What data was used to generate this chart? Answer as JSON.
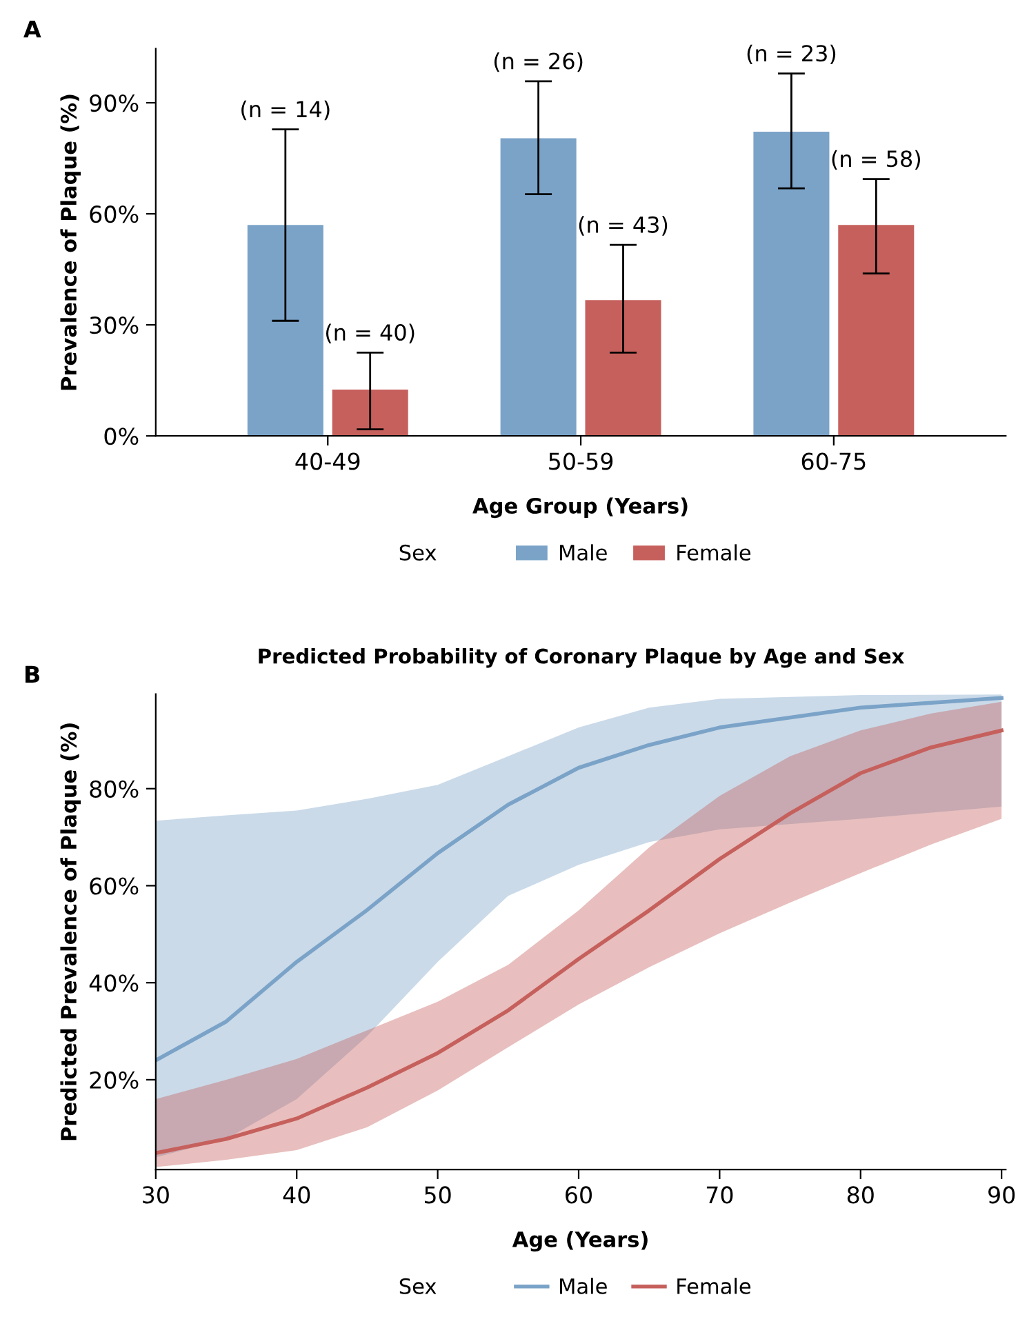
{
  "chart_data": [
    {
      "type": "bar",
      "categories": [
        "40-49",
        "50-59",
        "60-75"
      ],
      "xlabel": "Age Group (Years)",
      "ylabel": "Prevalence of Plaque (%)",
      "legend_title": "Sex",
      "legend": "bottom",
      "ylim": [
        0,
        104.6
      ],
      "yticks": [
        {
          "value": 0,
          "label": "0%"
        },
        {
          "value": 30,
          "label": "30%"
        },
        {
          "value": 60,
          "label": "60%"
        },
        {
          "value": 90,
          "label": "90%"
        }
      ],
      "grid": false,
      "series": [
        {
          "name": "Male",
          "color": "#7ba3c8",
          "values": [
            57,
            80.4,
            82.2
          ],
          "errors": [
            [
              31.1,
              82.8
            ],
            [
              65.3,
              95.8
            ],
            [
              66.9,
              97.9
            ]
          ]
        },
        {
          "name": "Female",
          "color": "#c6605c",
          "values": [
            12.5,
            36.7,
            57
          ],
          "errors": [
            [
              1.8,
              22.5
            ],
            [
              22.5,
              51.6
            ],
            [
              43.9,
              69.4
            ]
          ]
        }
      ],
      "annotations": [
        "A",
        "(n = 14)",
        "(n = 40)",
        "(n = 26)",
        "(n = 43)",
        "(n = 23)",
        "(n = 58)"
      ]
    },
    {
      "type": "line",
      "title": "Predicted Probability of Coronary Plaque by Age and Sex",
      "xlabel": "Age (Years)",
      "ylabel": "Predicted Prevalence of Plaque (%)",
      "legend_title": "Sex",
      "legend": "bottom",
      "grid": false,
      "marker": "none",
      "line_style": "solid",
      "xlim": [
        30,
        90.3
      ],
      "xticks": [
        30,
        40,
        50,
        60,
        70,
        80,
        90
      ],
      "ylim": [
        1.5,
        99.5
      ],
      "yticks": [
        {
          "value": 20,
          "label": "20%"
        },
        {
          "value": 40,
          "label": "40%"
        },
        {
          "value": 60,
          "label": "60%"
        },
        {
          "value": 80,
          "label": "80%"
        }
      ],
      "series": [
        {
          "name": "Male",
          "color": "#7ba3c8",
          "x": [
            30,
            35,
            40,
            45,
            50,
            55,
            60,
            65,
            70,
            80,
            90
          ],
          "values": [
            24,
            32,
            44.3,
            55,
            66.7,
            76.7,
            84.3,
            89,
            92.6,
            96.7,
            98.7
          ],
          "lower": [
            4,
            7.8,
            16,
            29,
            44.3,
            57.9,
            64.3,
            69,
            71.6,
            73.8,
            76.3
          ],
          "upper": [
            73.4,
            74.5,
            75.5,
            77.9,
            80.8,
            86.7,
            92.6,
            96.7,
            98.5,
            99.3,
            99.4
          ]
        },
        {
          "name": "Female",
          "color": "#c6605c",
          "x": [
            30,
            35,
            40,
            45,
            50,
            55,
            60,
            65,
            70,
            75,
            80,
            85,
            90
          ],
          "values": [
            4.9,
            7.8,
            12,
            18.4,
            25.5,
            34.3,
            44.9,
            54.9,
            65.5,
            74.9,
            83.2,
            88.5,
            92
          ],
          "lower": [
            2,
            3.5,
            5.5,
            10.2,
            17.8,
            26.7,
            35.5,
            43.2,
            50.2,
            56.5,
            62.6,
            68.5,
            73.8
          ],
          "upper": [
            16,
            20,
            24.3,
            30.2,
            36.1,
            43.7,
            54.9,
            67.9,
            78.5,
            86.7,
            92,
            95.5,
            97.9
          ]
        }
      ],
      "annotations": [
        "B"
      ]
    }
  ]
}
